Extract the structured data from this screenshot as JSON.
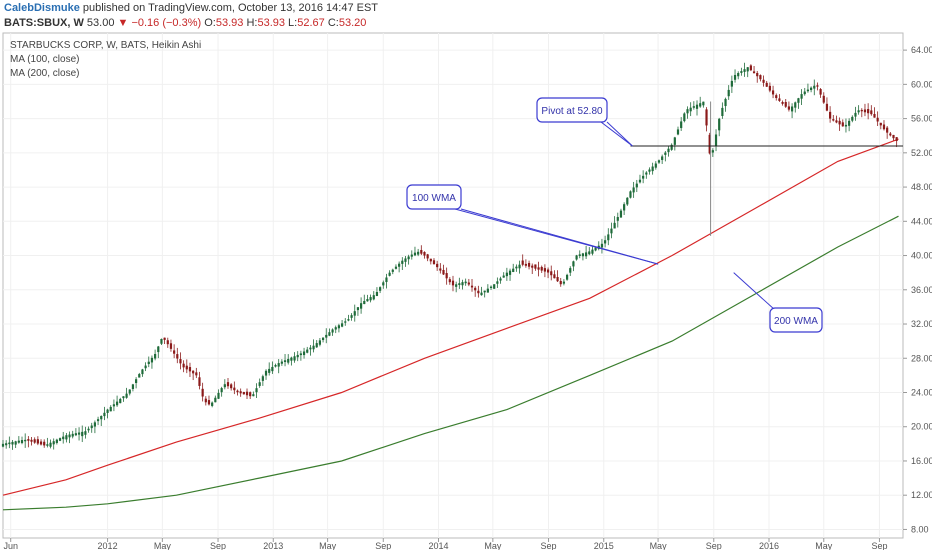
{
  "header": {
    "author": "CalebDismuke",
    "published_text": "published on TradingView.com, October 13, 2016 14:47 EST",
    "symbol": "BATS:SBUX, W",
    "last": "53.00",
    "change": "▼ −0.16 (−0.3%)",
    "ohlc_o_label": "O:",
    "ohlc_o": "53.93",
    "ohlc_h_label": "H:",
    "ohlc_h": "53.93",
    "ohlc_l_label": "L:",
    "ohlc_l": "52.67",
    "ohlc_c_label": "C:",
    "ohlc_c": "53.20"
  },
  "colors": {
    "up": "#1f6b3a",
    "down": "#8b1a1a",
    "ma100": "#d62728",
    "ma200": "#3a7d2e",
    "pivot": "#222222",
    "annotation": "#3b3bd1"
  },
  "chart_data": {
    "type": "candlestick",
    "title": "STARBUCKS CORP, W, BATS, Heikin Ashi",
    "legend": [
      "MA (100, close)",
      "MA (200, close)"
    ],
    "ylim": [
      7,
      66
    ],
    "y_ticks": [
      "8.00",
      "12.00",
      "16.00",
      "20.00",
      "24.00",
      "28.00",
      "32.00",
      "36.00",
      "40.00",
      "44.00",
      "48.00",
      "52.00",
      "56.00",
      "60.00",
      "64.00"
    ],
    "x_range": [
      "2011-05-15",
      "2016-10-23"
    ],
    "x_ticks": [
      {
        "label": "Jun",
        "date": "2011-06-01"
      },
      {
        "label": "2012",
        "date": "2012-01-01"
      },
      {
        "label": "May",
        "date": "2012-05-01"
      },
      {
        "label": "Sep",
        "date": "2012-09-01"
      },
      {
        "label": "2013",
        "date": "2013-01-01"
      },
      {
        "label": "May",
        "date": "2013-05-01"
      },
      {
        "label": "Sep",
        "date": "2013-09-01"
      },
      {
        "label": "2014",
        "date": "2014-01-01"
      },
      {
        "label": "May",
        "date": "2014-05-01"
      },
      {
        "label": "Sep",
        "date": "2014-09-01"
      },
      {
        "label": "2015",
        "date": "2015-01-01"
      },
      {
        "label": "May",
        "date": "2015-05-01"
      },
      {
        "label": "Sep",
        "date": "2015-09-01"
      },
      {
        "label": "2016",
        "date": "2016-01-01"
      },
      {
        "label": "May",
        "date": "2016-05-01"
      },
      {
        "label": "Sep",
        "date": "2016-09-01"
      }
    ],
    "price_path": [
      [
        "2011-05-15",
        18.0
      ],
      [
        "2011-07-01",
        18.5
      ],
      [
        "2011-08-15",
        17.8
      ],
      [
        "2011-10-01",
        19.0
      ],
      [
        "2011-11-15",
        19.5
      ],
      [
        "2012-01-01",
        22.0
      ],
      [
        "2012-02-15",
        24.0
      ],
      [
        "2012-03-15",
        26.5
      ],
      [
        "2012-04-15",
        28.5
      ],
      [
        "2012-05-01",
        30.5
      ],
      [
        "2012-05-15",
        29.5
      ],
      [
        "2012-06-15",
        27.0
      ],
      [
        "2012-07-15",
        26.0
      ],
      [
        "2012-08-01",
        23.0
      ],
      [
        "2012-08-15",
        22.5
      ],
      [
        "2012-09-15",
        25.0
      ],
      [
        "2012-10-15",
        24.0
      ],
      [
        "2012-11-15",
        23.5
      ],
      [
        "2012-12-15",
        26.5
      ],
      [
        "2013-01-15",
        27.5
      ],
      [
        "2013-03-01",
        28.5
      ],
      [
        "2013-04-01",
        29.5
      ],
      [
        "2013-05-15",
        31.5
      ],
      [
        "2013-06-15",
        32.5
      ],
      [
        "2013-07-15",
        34.5
      ],
      [
        "2013-08-15",
        35.5
      ],
      [
        "2013-09-15",
        38.0
      ],
      [
        "2013-10-15",
        39.5
      ],
      [
        "2013-11-15",
        40.5
      ],
      [
        "2013-12-01",
        40.0
      ],
      [
        "2014-01-01",
        38.5
      ],
      [
        "2014-02-01",
        36.5
      ],
      [
        "2014-03-01",
        37.0
      ],
      [
        "2014-04-01",
        35.5
      ],
      [
        "2014-05-01",
        36.5
      ],
      [
        "2014-06-01",
        38.0
      ],
      [
        "2014-07-01",
        39.0
      ],
      [
        "2014-08-01",
        38.5
      ],
      [
        "2014-09-01",
        38.0
      ],
      [
        "2014-10-01",
        36.5
      ],
      [
        "2014-11-01",
        40.0
      ],
      [
        "2014-12-01",
        40.5
      ],
      [
        "2015-01-01",
        41.5
      ],
      [
        "2015-02-01",
        44.5
      ],
      [
        "2015-03-01",
        47.5
      ],
      [
        "2015-04-01",
        49.5
      ],
      [
        "2015-05-01",
        51.0
      ],
      [
        "2015-06-01",
        53.0
      ],
      [
        "2015-07-01",
        57.0
      ],
      [
        "2015-08-10",
        58.0
      ],
      [
        "2015-08-25",
        51.0
      ],
      [
        "2015-09-15",
        56.5
      ],
      [
        "2015-10-15",
        61.0
      ],
      [
        "2015-11-15",
        62.0
      ],
      [
        "2015-12-15",
        60.5
      ],
      [
        "2016-01-15",
        58.5
      ],
      [
        "2016-02-15",
        57.0
      ],
      [
        "2016-03-15",
        59.0
      ],
      [
        "2016-04-15",
        60.0
      ],
      [
        "2016-05-15",
        56.0
      ],
      [
        "2016-06-15",
        55.0
      ],
      [
        "2016-07-15",
        57.0
      ],
      [
        "2016-08-15",
        56.5
      ],
      [
        "2016-09-15",
        54.5
      ],
      [
        "2016-10-13",
        53.2
      ]
    ],
    "series": [
      {
        "name": "MA (100, close)",
        "points": [
          [
            "2011-05-15",
            12.0
          ],
          [
            "2011-10-01",
            13.8
          ],
          [
            "2012-01-01",
            15.5
          ],
          [
            "2012-06-01",
            18.2
          ],
          [
            "2012-12-01",
            21.0
          ],
          [
            "2013-06-01",
            24.0
          ],
          [
            "2013-12-01",
            28.0
          ],
          [
            "2014-06-01",
            31.5
          ],
          [
            "2014-12-01",
            35.0
          ],
          [
            "2015-06-01",
            40.0
          ],
          [
            "2015-12-01",
            45.5
          ],
          [
            "2016-06-01",
            51.0
          ],
          [
            "2016-10-13",
            53.6
          ]
        ]
      },
      {
        "name": "MA (200, close)",
        "points": [
          [
            "2011-05-15",
            10.3
          ],
          [
            "2011-10-01",
            10.6
          ],
          [
            "2012-01-01",
            11.0
          ],
          [
            "2012-06-01",
            12.0
          ],
          [
            "2012-12-01",
            14.0
          ],
          [
            "2013-06-01",
            16.0
          ],
          [
            "2013-12-01",
            19.2
          ],
          [
            "2014-06-01",
            22.0
          ],
          [
            "2014-12-01",
            26.0
          ],
          [
            "2015-06-01",
            30.0
          ],
          [
            "2015-12-01",
            35.5
          ],
          [
            "2016-06-01",
            41.0
          ],
          [
            "2016-10-13",
            44.6
          ]
        ]
      }
    ],
    "annotations": [
      {
        "name": "pivot",
        "text": "Pivot at 52.80",
        "level": 52.8,
        "x_from": "2015-03-01",
        "x_to": "2016-10-23"
      },
      {
        "name": "ma100-callout",
        "text": "100 WMA",
        "target_date": "2015-05-01",
        "target_price": 39.0
      },
      {
        "name": "ma200-callout",
        "text": "200 WMA",
        "target_date": "2015-10-15",
        "target_price": 38.0
      }
    ]
  }
}
